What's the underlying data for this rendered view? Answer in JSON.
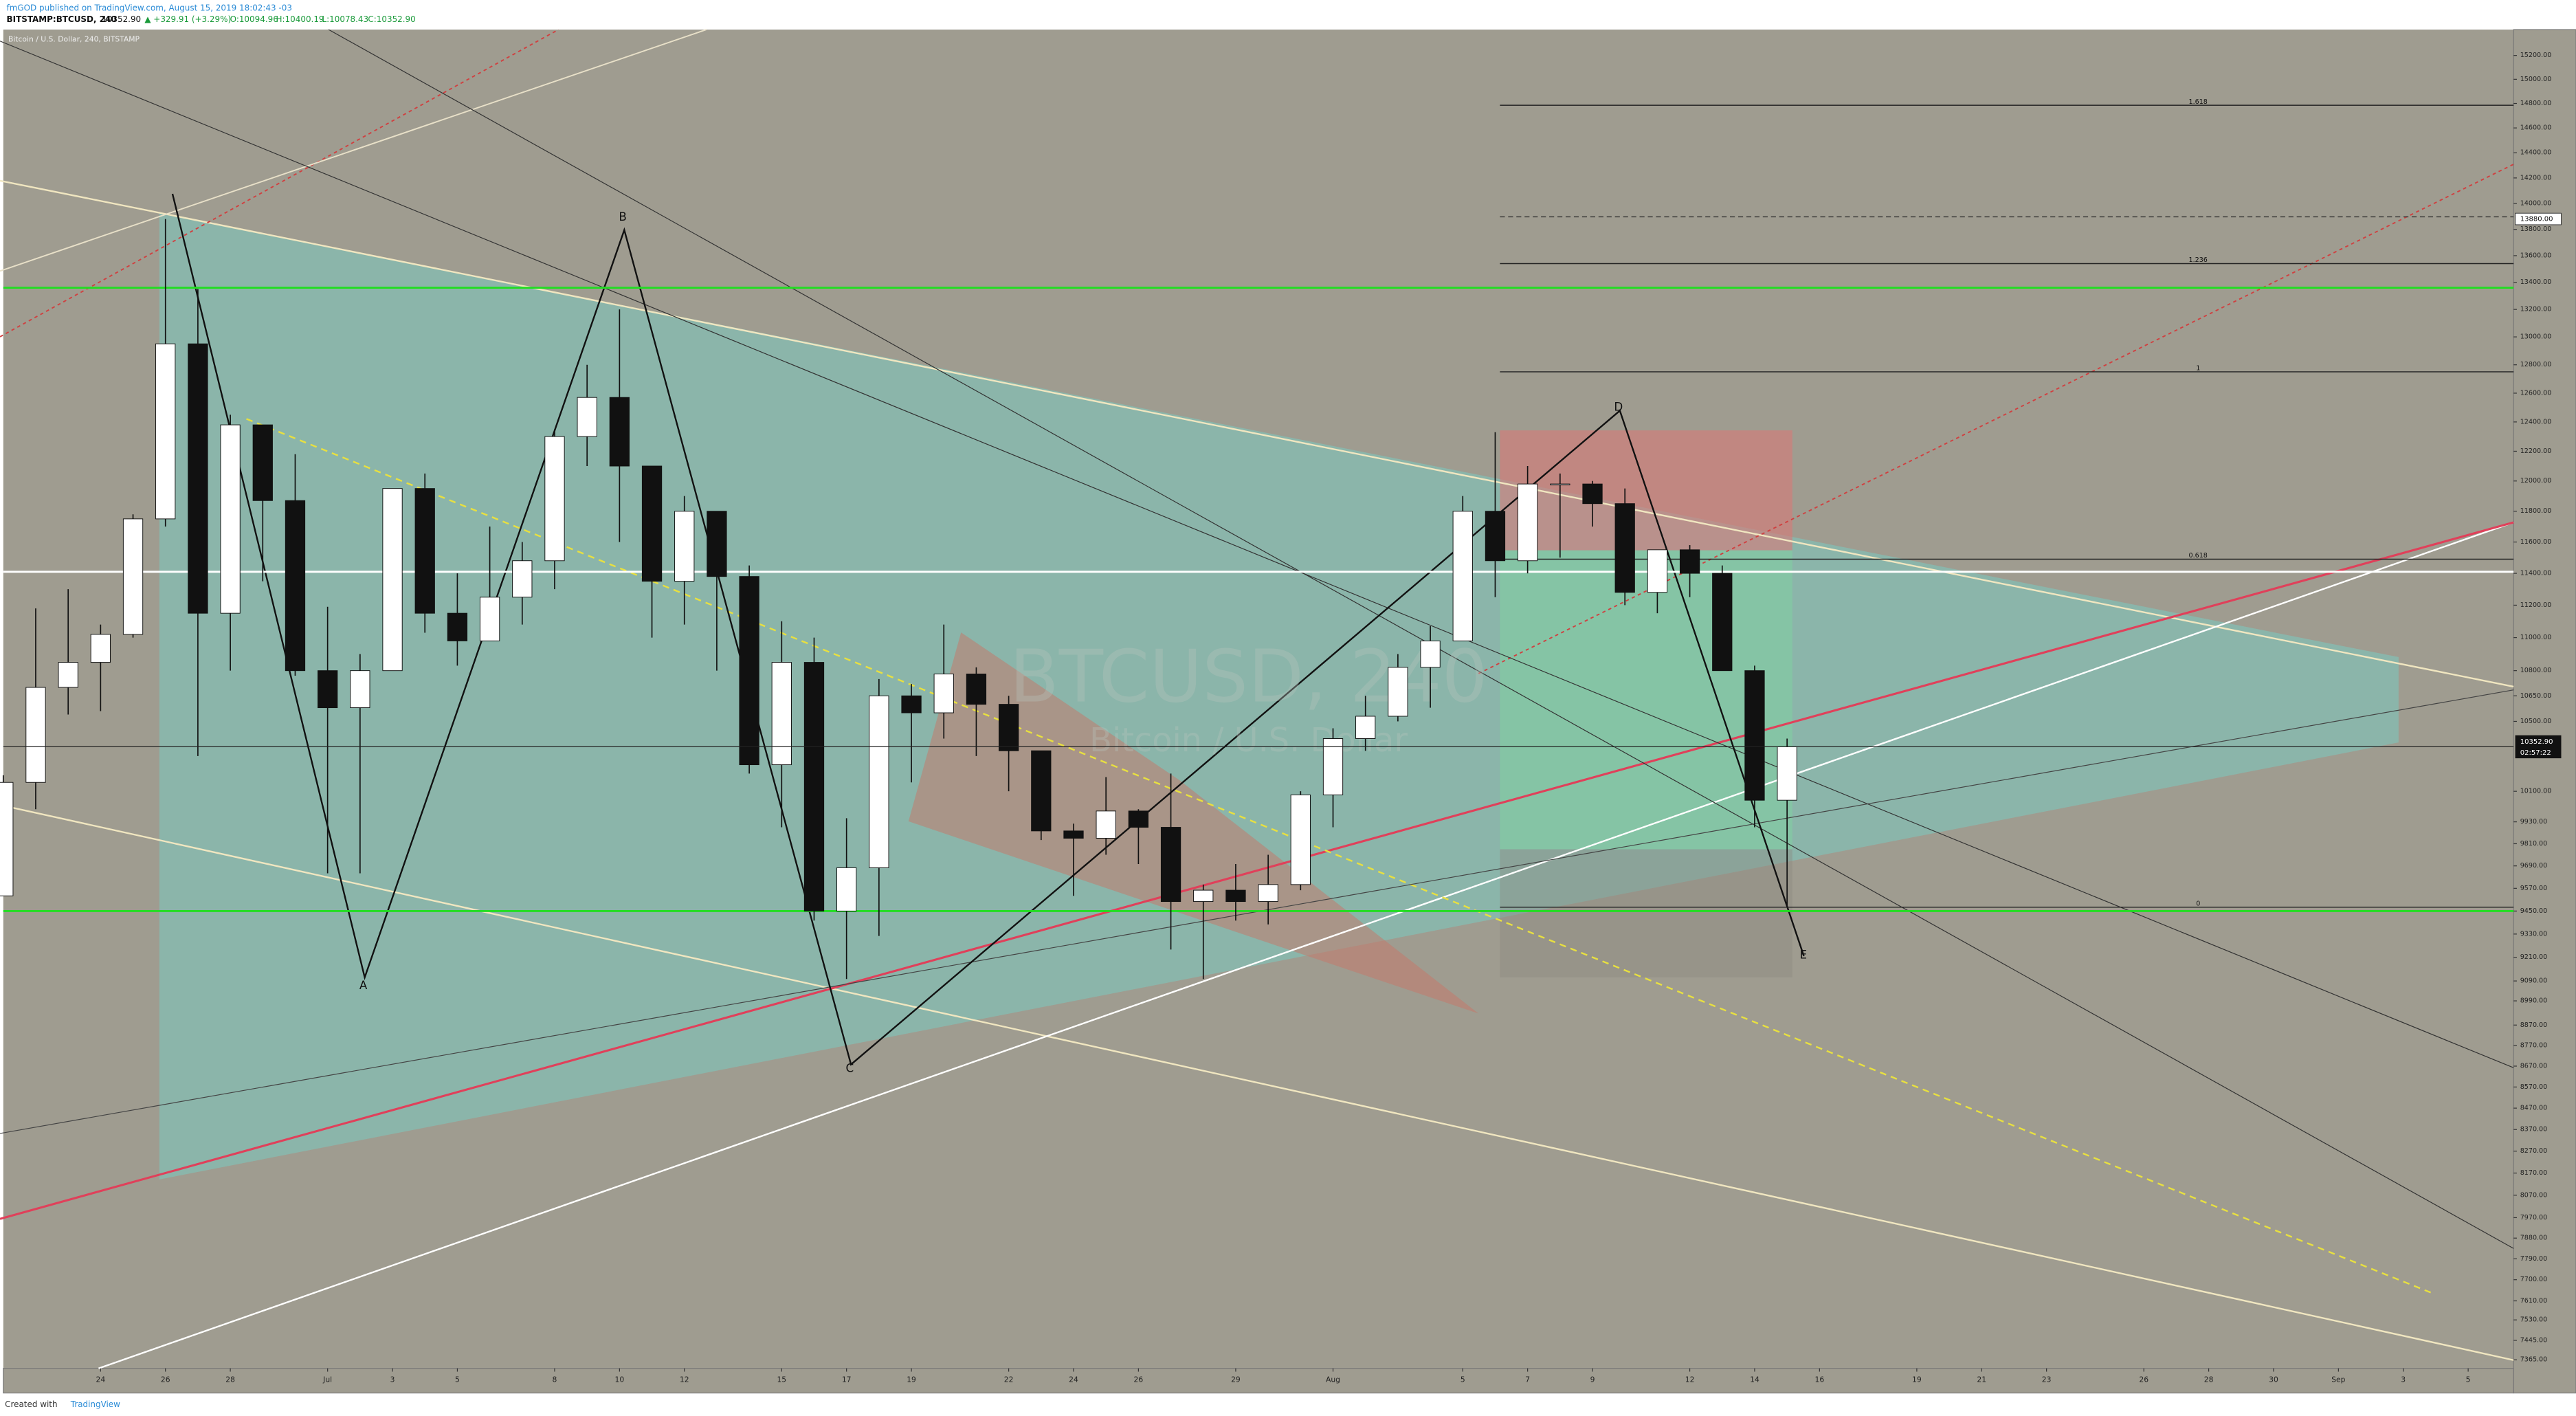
{
  "header": {
    "publisher": "fmGOD published on TradingView.com, August 15, 2019 18:02:43 -03",
    "symbol": "BITSTAMP:BTCUSD, 240",
    "last": "10352.90",
    "change": "▲ +329.91 (+3.29%)",
    "open": "O:10094.96",
    "high": "H:10400.19",
    "low": "L:10078.43",
    "close": "C:10352.90"
  },
  "footer": {
    "created": "Created with",
    "brand": "TradingView"
  },
  "chart_data": {
    "type": "candlestick",
    "subtitle": "Bitcoin / U.S. Dollar, 240, BITSTAMP",
    "watermark": "BTCUSD, 240",
    "watermark_sub": "Bitcoin / U.S. Dollar",
    "x": [
      172,
      173,
      174,
      175,
      176,
      177,
      178,
      179,
      180,
      181,
      182,
      183,
      184,
      185,
      186,
      187,
      188,
      189,
      190,
      191,
      192,
      193,
      194,
      195,
      196,
      197,
      198,
      199,
      200,
      201,
      202,
      203,
      204,
      205,
      206,
      207,
      208,
      209,
      210,
      211,
      212,
      213,
      214,
      215,
      216,
      217,
      218,
      219,
      220,
      221,
      222,
      223,
      224,
      225,
      226,
      227
    ],
    "open": [
      9530,
      10150,
      10700,
      10850,
      11020,
      11750,
      12950,
      11150,
      12380,
      11870,
      10800,
      10580,
      10800,
      11950,
      11150,
      10980,
      11250,
      11480,
      12300,
      12570,
      12100,
      11350,
      11800,
      11380,
      10250,
      10850,
      9450,
      9680,
      10650,
      10550,
      10780,
      10600,
      10330,
      9880,
      9840,
      9990,
      9900,
      9500,
      9560,
      9500,
      9590,
      10080,
      10400,
      10530,
      10820,
      10980,
      11800,
      11480,
      11980,
      11980,
      11850,
      11280,
      11550,
      11400,
      10800,
      10050
    ],
    "high": [
      10190,
      11180,
      11300,
      11080,
      11780,
      13880,
      13350,
      12450,
      12380,
      12180,
      11190,
      10900,
      11950,
      12050,
      11400,
      11700,
      11600,
      12350,
      12800,
      13200,
      12100,
      11900,
      11800,
      11450,
      11100,
      11000,
      9950,
      10750,
      10720,
      11080,
      10820,
      10650,
      10330,
      9920,
      10180,
      10000,
      10200,
      9590,
      9700,
      9750,
      10100,
      10460,
      10650,
      10900,
      11070,
      11900,
      12330,
      12100,
      12050,
      12000,
      11950,
      11550,
      11580,
      11450,
      10830,
      10400
    ],
    "low": [
      9530,
      10000,
      10540,
      10560,
      11000,
      11700,
      10300,
      10800,
      11350,
      10770,
      9650,
      9650,
      10800,
      11030,
      10830,
      10980,
      11080,
      11300,
      12100,
      11600,
      11000,
      11080,
      10800,
      10200,
      9900,
      9400,
      9100,
      9320,
      10150,
      10400,
      10300,
      10100,
      9830,
      9530,
      9750,
      9700,
      9250,
      9100,
      9400,
      9380,
      9560,
      9900,
      10330,
      10500,
      10580,
      10980,
      11250,
      11400,
      11500,
      11700,
      11200,
      11150,
      11250,
      10800,
      9900,
      9480
    ],
    "close": [
      10150,
      10700,
      10850,
      11020,
      11750,
      12950,
      11150,
      12380,
      11870,
      10800,
      10580,
      10800,
      11950,
      11150,
      10980,
      11250,
      11480,
      12300,
      12570,
      12100,
      11350,
      11800,
      11380,
      10250,
      10850,
      9450,
      9680,
      10650,
      10550,
      10780,
      10600,
      10330,
      9880,
      9840,
      9990,
      9900,
      9500,
      9560,
      9500,
      9590,
      10080,
      10400,
      10530,
      10820,
      10980,
      11800,
      11480,
      11980,
      11980,
      11850,
      11280,
      11550,
      11400,
      10800,
      10050,
      10352.9
    ],
    "up_color": "#ffffff",
    "down_color": "#111111",
    "xlim": [
      172,
      249.4
    ],
    "xticks": [
      {
        "value": 175,
        "label": "24"
      },
      {
        "value": 177,
        "label": "26"
      },
      {
        "value": 179,
        "label": "28"
      },
      {
        "value": 182,
        "label": "Jul"
      },
      {
        "value": 184,
        "label": "3"
      },
      {
        "value": 186,
        "label": "5"
      },
      {
        "value": 189,
        "label": "8"
      },
      {
        "value": 191,
        "label": "10"
      },
      {
        "value": 193,
        "label": "12"
      },
      {
        "value": 196,
        "label": "15"
      },
      {
        "value": 198,
        "label": "17"
      },
      {
        "value": 200,
        "label": "19"
      },
      {
        "value": 203,
        "label": "22"
      },
      {
        "value": 205,
        "label": "24"
      },
      {
        "value": 207,
        "label": "26"
      },
      {
        "value": 210,
        "label": "29"
      },
      {
        "value": 213,
        "label": "Aug"
      },
      {
        "value": 217,
        "label": "5"
      },
      {
        "value": 219,
        "label": "7"
      },
      {
        "value": 221,
        "label": "9"
      },
      {
        "value": 224,
        "label": "12"
      },
      {
        "value": 226,
        "label": "14"
      },
      {
        "value": 228,
        "label": "16"
      },
      {
        "value": 231,
        "label": "19"
      },
      {
        "value": 233,
        "label": "21"
      },
      {
        "value": 235,
        "label": "23"
      },
      {
        "value": 238,
        "label": "26"
      },
      {
        "value": 240,
        "label": "28"
      },
      {
        "value": 242,
        "label": "30"
      },
      {
        "value": 244,
        "label": "Sep"
      },
      {
        "value": 246,
        "label": "3"
      },
      {
        "value": 248,
        "label": "5"
      }
    ],
    "ylim": [
      7330,
      15420
    ],
    "log_scale": true,
    "yticks": [
      {
        "value": 15200,
        "label": "15200.00"
      },
      {
        "value": 15000,
        "label": "15000.00"
      },
      {
        "value": 14800,
        "label": "14800.00"
      },
      {
        "value": 14600,
        "label": "14600.00"
      },
      {
        "value": 14400,
        "label": "14400.00"
      },
      {
        "value": 14200,
        "label": "14200.00"
      },
      {
        "value": 14000,
        "label": "14000.00"
      },
      {
        "value": 13800,
        "label": "13800.00"
      },
      {
        "value": 13600,
        "label": "13600.00"
      },
      {
        "value": 13400,
        "label": "13400.00"
      },
      {
        "value": 13200,
        "label": "13200.00"
      },
      {
        "value": 13000,
        "label": "13000.00"
      },
      {
        "value": 12800,
        "label": "12800.00"
      },
      {
        "value": 12600,
        "label": "12600.00"
      },
      {
        "value": 12400,
        "label": "12400.00"
      },
      {
        "value": 12200,
        "label": "12200.00"
      },
      {
        "value": 12000,
        "label": "12000.00"
      },
      {
        "value": 11800,
        "label": "11800.00"
      },
      {
        "value": 11600,
        "label": "11600.00"
      },
      {
        "value": 11400,
        "label": "11400.00"
      },
      {
        "value": 11200,
        "label": "11200.00"
      },
      {
        "value": 11000,
        "label": "11000.00"
      },
      {
        "value": 10800,
        "label": "10800.00"
      },
      {
        "value": 10650,
        "label": "10650.00"
      },
      {
        "value": 10500,
        "label": "10500.00"
      },
      {
        "value": 10100,
        "label": "10100.00"
      },
      {
        "value": 9930,
        "label": "9930.00"
      },
      {
        "value": 9810,
        "label": "9810.00"
      },
      {
        "value": 9690,
        "label": "9690.00"
      },
      {
        "value": 9570,
        "label": "9570.00"
      },
      {
        "value": 9450,
        "label": "9450.00"
      },
      {
        "value": 9330,
        "label": "9330.00"
      },
      {
        "value": 9210,
        "label": "9210.00"
      },
      {
        "value": 9090,
        "label": "9090.00"
      },
      {
        "value": 8990,
        "label": "8990.00"
      },
      {
        "value": 8870,
        "label": "8870.00"
      },
      {
        "value": 8770,
        "label": "8770.00"
      },
      {
        "value": 8670,
        "label": "8670.00"
      },
      {
        "value": 8570,
        "label": "8570.00"
      },
      {
        "value": 8470,
        "label": "8470.00"
      },
      {
        "value": 8370,
        "label": "8370.00"
      },
      {
        "value": 8270,
        "label": "8270.00"
      },
      {
        "value": 8170,
        "label": "8170.00"
      },
      {
        "value": 8070,
        "label": "8070.00"
      },
      {
        "value": 7970,
        "label": "7970.00"
      },
      {
        "value": 7880,
        "label": "7880.00"
      },
      {
        "value": 7790,
        "label": "7790.00"
      },
      {
        "value": 7700,
        "label": "7700.00"
      },
      {
        "value": 7610,
        "label": "7610.00"
      },
      {
        "value": 7530,
        "label": "7530.00"
      },
      {
        "value": 7445,
        "label": "7445.00"
      },
      {
        "value": 7365,
        "label": "7365.00"
      }
    ],
    "levels": [
      {
        "value": 13360,
        "color": "#22dd22"
      },
      {
        "value": 9450,
        "color": "#22dd22"
      },
      {
        "value": 11410,
        "color": "#ffffff"
      }
    ],
    "marker_label": {
      "value": 13880,
      "label": "13880.00"
    },
    "price_label": {
      "value": 10352.9,
      "label": "10352.90"
    },
    "countdown": "02:57:22",
    "fib": [
      {
        "value": 14785,
        "label": "1.618"
      },
      {
        "value": 13540,
        "label": "1.236"
      },
      {
        "value": 12750,
        "label": "1"
      },
      {
        "value": 11490,
        "label": "0.618"
      },
      {
        "value": 9470,
        "label": "0"
      }
    ],
    "annotations": [
      {
        "text": "A",
        "x": 183.1,
        "y": 9065
      },
      {
        "text": "B",
        "x": 191.1,
        "y": 13890
      },
      {
        "text": "C",
        "x": 198.1,
        "y": 8657
      },
      {
        "text": "D",
        "x": 221.8,
        "y": 12498
      },
      {
        "text": "E",
        "x": 227.5,
        "y": 9220
      }
    ]
  }
}
